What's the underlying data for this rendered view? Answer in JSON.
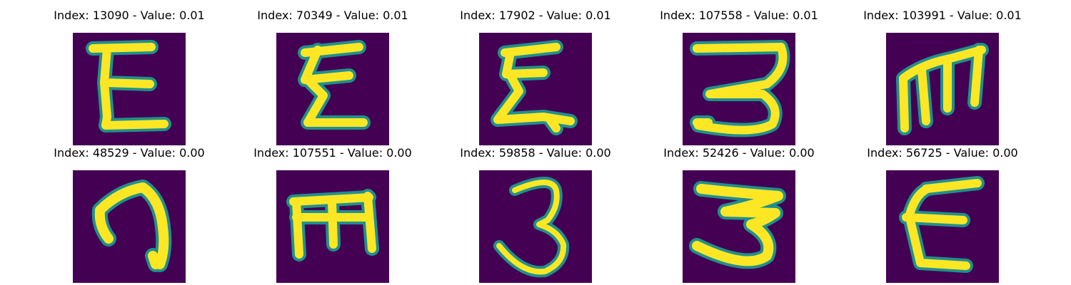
{
  "colors": {
    "background": "#440154",
    "edge": "#21908d",
    "stroke": "#fde725"
  },
  "panels": [
    {
      "index": "13090",
      "value": "0.01",
      "title": "Index: 13090 - Value: 0.01",
      "glyph": "e-tall"
    },
    {
      "index": "70349",
      "value": "0.01",
      "title": "Index: 70349 - Value: 0.01",
      "glyph": "e-zigzag"
    },
    {
      "index": "17902",
      "value": "0.01",
      "title": "Index: 17902 - Value: 0.01",
      "glyph": "e-wavy"
    },
    {
      "index": "107558",
      "value": "0.01",
      "title": "Index: 107558 - Value: 0.01",
      "glyph": "three-flat"
    },
    {
      "index": "103991",
      "value": "0.01",
      "title": "Index: 103991 - Value: 0.01",
      "glyph": "m-upright"
    },
    {
      "index": "48529",
      "value": "0.00",
      "title": "Index: 48529 - Value: 0.00",
      "glyph": "hook-curl"
    },
    {
      "index": "107551",
      "value": "0.00",
      "title": "Index: 107551 - Value: 0.00",
      "glyph": "m-block"
    },
    {
      "index": "59858",
      "value": "0.00",
      "title": "Index: 59858 - Value: 0.00",
      "glyph": "three-thin"
    },
    {
      "index": "52426",
      "value": "0.00",
      "title": "Index: 52426 - Value: 0.00",
      "glyph": "three-bold"
    },
    {
      "index": "56725",
      "value": "0.00",
      "title": "Index: 56725 - Value: 0.00",
      "glyph": "e-curved"
    }
  ]
}
